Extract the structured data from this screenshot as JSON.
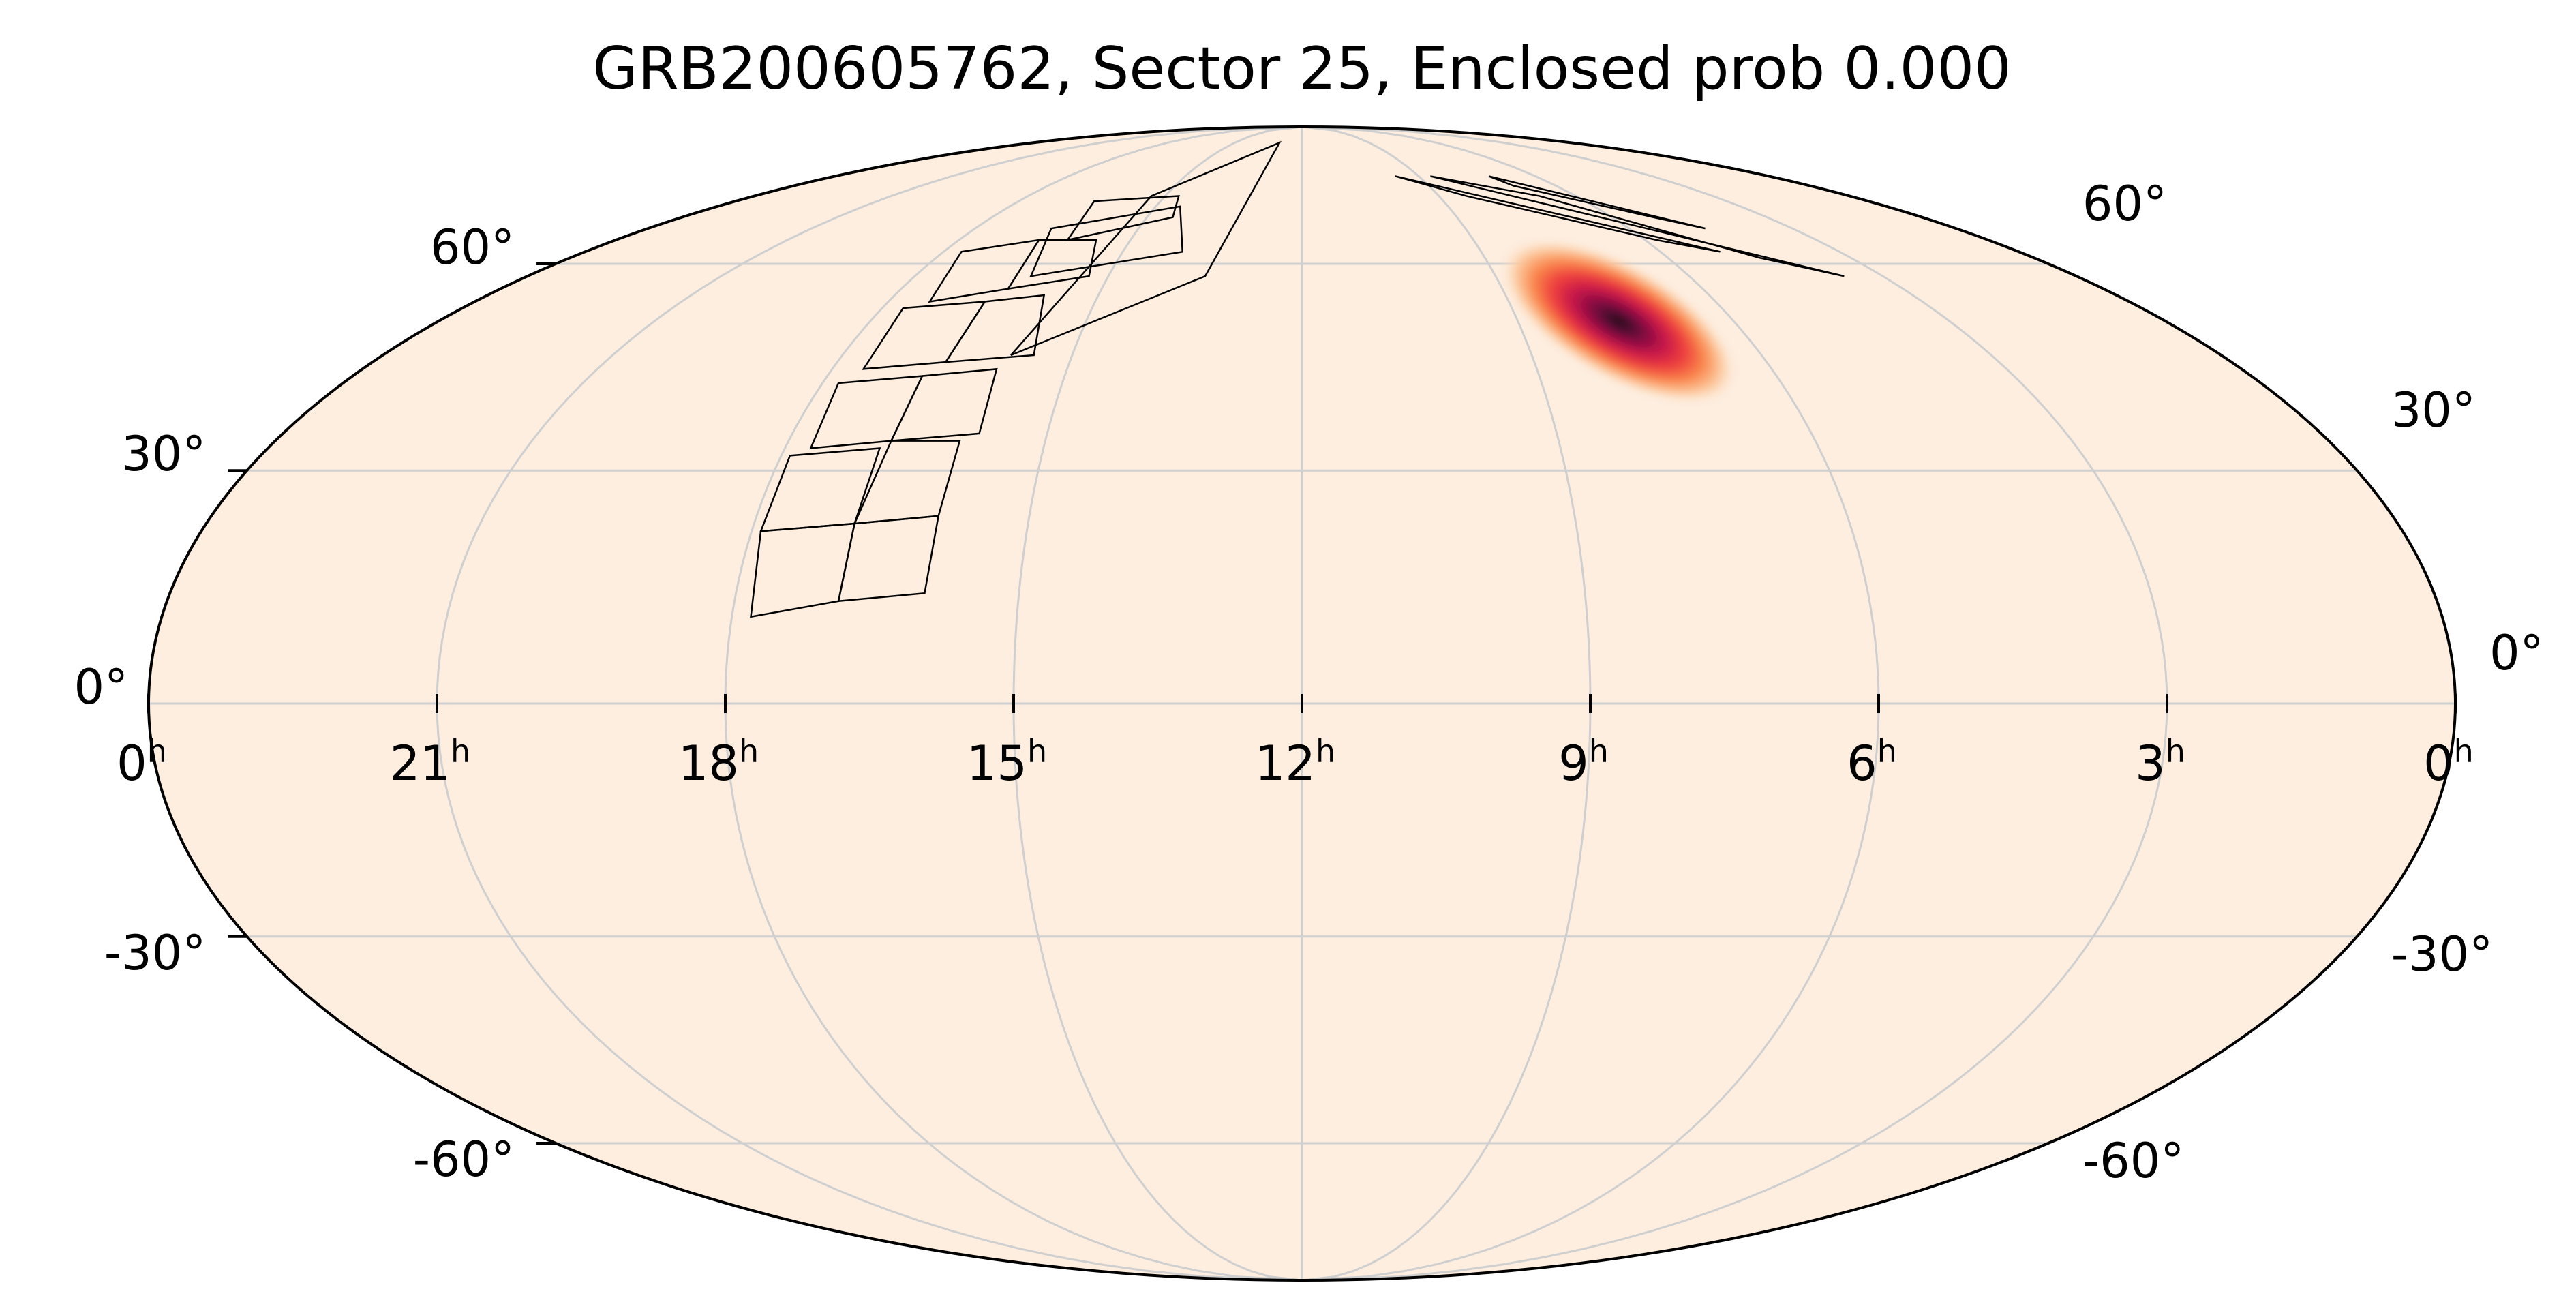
{
  "chart_data": {
    "type": "heatmap",
    "projection": "mollweide",
    "title": "GRB200605762, Sector 25, Enclosed prob 0.000",
    "background_color": "#fdeee0",
    "colormap": [
      "#fdeee0",
      "#fcc79a",
      "#f9834a",
      "#ee3f3e",
      "#c5154a",
      "#6f0a3d",
      "#1a0718"
    ],
    "ra_hours_ticks": [
      {
        "ra": 0,
        "label": "0",
        "sup": "h"
      },
      {
        "ra": 21,
        "label": "21",
        "sup": "h"
      },
      {
        "ra": 18,
        "label": "18",
        "sup": "h"
      },
      {
        "ra": 15,
        "label": "15",
        "sup": "h"
      },
      {
        "ra": 12,
        "label": "12",
        "sup": "h"
      },
      {
        "ra": 9,
        "label": "9",
        "sup": "h"
      },
      {
        "ra": 6,
        "label": "6",
        "sup": "h"
      },
      {
        "ra": 3,
        "label": "3",
        "sup": "h"
      },
      {
        "ra": 0,
        "label": "0",
        "sup": "h",
        "edge": "right"
      }
    ],
    "dec_ticks_left": [
      {
        "dec": 60,
        "label": "60°"
      },
      {
        "dec": 30,
        "label": "30°"
      },
      {
        "dec": 0,
        "label": "0°"
      },
      {
        "dec": -30,
        "label": "-30°"
      },
      {
        "dec": -60,
        "label": "-60°"
      }
    ],
    "dec_ticks_right": [
      {
        "dec": 60,
        "label": "60°"
      },
      {
        "dec": 30,
        "label": "30°"
      },
      {
        "dec": 0,
        "label": "0°"
      },
      {
        "dec": -30,
        "label": "-30°"
      },
      {
        "dec": -60,
        "label": "-60°"
      }
    ],
    "grid": true,
    "localization": {
      "ra_hours": 7.6,
      "dec_deg": 51,
      "sigma_major_deg": 7,
      "sigma_minor_deg": 3,
      "peak_prob": 1.0
    },
    "sector_camera_tiles": [
      {
        "ra_hours": [
          16.1,
          14.5,
          14.7,
          16.4
        ],
        "dec_deg": [
          64,
          68,
          72,
          71
        ]
      },
      {
        "ra_hours": [
          17.4,
          16.4,
          16.6,
          17.7
        ],
        "dec_deg": [
          54,
          56,
          64,
          62
        ]
      },
      {
        "ra_hours": [
          16.4,
          15.3,
          15.6,
          16.6
        ],
        "dec_deg": [
          56,
          58,
          64,
          64
        ]
      },
      {
        "ra_hours": [
          17.6,
          16.6,
          16.6,
          17.7
        ],
        "dec_deg": [
          44,
          45,
          54,
          53
        ]
      },
      {
        "ra_hours": [
          16.6,
          15.5,
          15.8,
          16.6
        ],
        "dec_deg": [
          45,
          46,
          55,
          54
        ]
      },
      {
        "ra_hours": [
          17.7,
          16.8,
          16.8,
          17.8
        ],
        "dec_deg": [
          33,
          34,
          43,
          42
        ]
      },
      {
        "ra_hours": [
          16.8,
          15.8,
          15.9,
          16.8
        ],
        "dec_deg": [
          34,
          35,
          44,
          43
        ]
      },
      {
        "ra_hours": [
          17.8,
          16.9,
          16.9,
          17.9
        ],
        "dec_deg": [
          11,
          13,
          23,
          22
        ]
      },
      {
        "ra_hours": [
          16.9,
          16.0,
          16.0,
          16.9
        ],
        "dec_deg": [
          13,
          14,
          24,
          23
        ]
      },
      {
        "ra_hours": [
          17.9,
          16.9,
          16.9,
          17.9
        ],
        "dec_deg": [
          22,
          23,
          33,
          32
        ]
      },
      {
        "ra_hours": [
          16.9,
          16.0,
          16.0,
          16.8
        ],
        "dec_deg": [
          23,
          24,
          34,
          34
        ]
      },
      {
        "ra_hours": [
          16.2,
          14.0,
          14.5,
          16.6
        ],
        "dec_deg": [
          58,
          62,
          70,
          66
        ]
      },
      {
        "ra_hours": [
          15.8,
          13.5,
          13.0,
          15.3
        ],
        "dec_deg": [
          46,
          58,
          84,
          72
        ]
      },
      {
        "ra_hours": [
          5.0,
          5.8,
          8.4,
          9.6
        ],
        "dec_deg": [
          62,
          64,
          72,
          76
        ]
      },
      {
        "ra_hours": [
          4.6,
          5.2,
          7.0,
          7.2
        ],
        "dec_deg": [
          66,
          68,
          74,
          76
        ]
      },
      {
        "ra_hours": [
          3.6,
          4.5,
          6.8,
          8.7
        ],
        "dec_deg": [
          58,
          61,
          72,
          76
        ]
      }
    ]
  }
}
